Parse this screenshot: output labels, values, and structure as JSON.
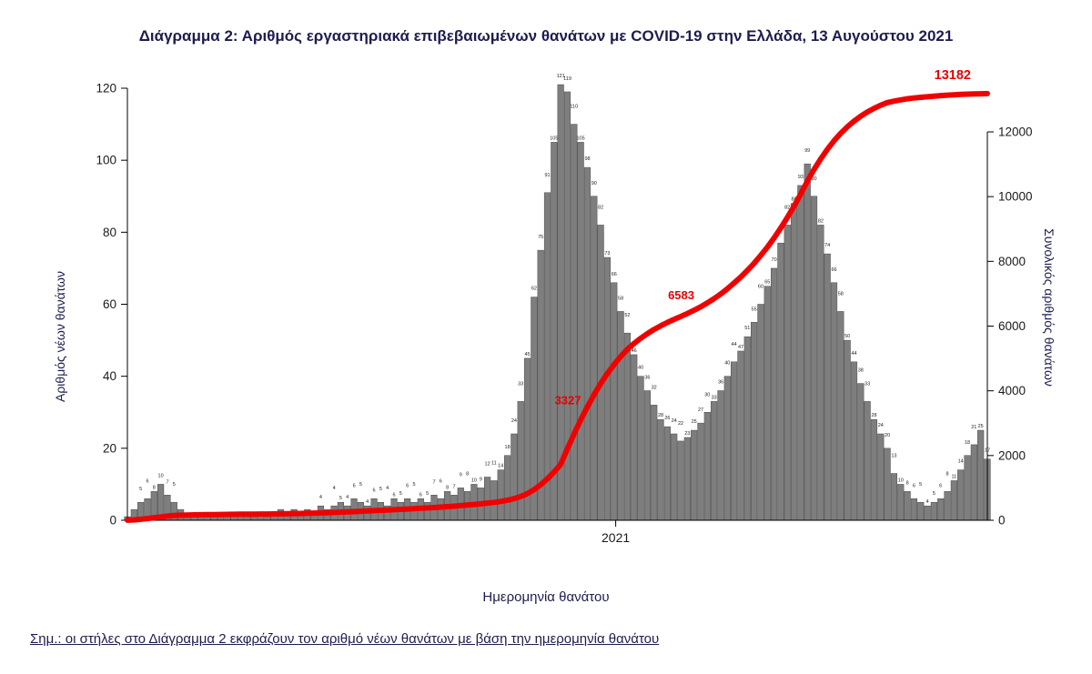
{
  "page": {
    "title": "Διάγραμμα 2: Αριθμός εργαστηριακά επιβεβαιωμένων θανάτων με COVID-19 στην Ελλάδα, 13 Αυγούστου 2021",
    "footnote": "Σημ.: οι στήλες στο Διάγραμμα 2 εκφράζουν τον αριθμό νέων θανάτων με βάση την ημερομηνία θανάτου"
  },
  "chart_data": {
    "type": "bar",
    "subtype": "daily bars + cumulative line (dual axis)",
    "title": "Διάγραμμα 2: Αριθμός εργαστηριακά επιβεβαιωμένων θανάτων με COVID-19 στην Ελλάδα, 13 Αυγούστου 2021",
    "xlabel": "Ημερομηνία θανάτου",
    "ylabel_left": "Αριθμός νέων θανάτων",
    "ylabel_right": "Συνολικός αριθμός θανάτων",
    "x_unit": "days since start of series (axis unlabeled except year tick)",
    "x_step_days": 4,
    "x_ticks": [
      {
        "day": 293,
        "label": "2021"
      }
    ],
    "y_left": {
      "min": 0,
      "max": 120,
      "step": 20
    },
    "y_right": {
      "min": 0,
      "max": 12000,
      "step": 2000
    },
    "grid": false,
    "legend": "none",
    "series": [
      {
        "name": "Αριθμός νέων θανάτων",
        "type": "bar",
        "axis": "left",
        "values": [
          1,
          3,
          5,
          6,
          8,
          10,
          7,
          5,
          3,
          2,
          1,
          2,
          1,
          1,
          2,
          1,
          1,
          2,
          1,
          1,
          2,
          1,
          2,
          3,
          2,
          3,
          2,
          3,
          2,
          4,
          3,
          4,
          5,
          4,
          6,
          5,
          4,
          6,
          5,
          4,
          6,
          5,
          6,
          5,
          6,
          5,
          7,
          6,
          8,
          7,
          9,
          8,
          10,
          9,
          12,
          11,
          14,
          18,
          24,
          33,
          45,
          62,
          75,
          91,
          105,
          121,
          119,
          110,
          105,
          98,
          90,
          82,
          73,
          66,
          58,
          52,
          46,
          40,
          36,
          32,
          28,
          26,
          24,
          22,
          23,
          25,
          27,
          30,
          33,
          36,
          40,
          44,
          47,
          51,
          55,
          60,
          65,
          70,
          77,
          82,
          88,
          93,
          99,
          90,
          82,
          74,
          66,
          58,
          50,
          44,
          38,
          33,
          28,
          24,
          20,
          13,
          10,
          8,
          6,
          5,
          4,
          5,
          6,
          8,
          11,
          14,
          18,
          21,
          25,
          17
        ]
      },
      {
        "name": "Συνολικός αριθμός θανάτων",
        "type": "line",
        "axis": "right",
        "values": [
          2,
          12,
          30,
          52,
          80,
          105,
          130,
          150,
          158,
          164,
          168,
          172,
          175,
          178,
          181,
          183,
          185,
          187,
          189,
          191,
          193,
          195,
          197,
          200,
          204,
          208,
          212,
          217,
          221,
          228,
          234,
          241,
          250,
          258,
          268,
          278,
          287,
          297,
          307,
          316,
          327,
          337,
          348,
          358,
          370,
          381,
          394,
          407,
          422,
          437,
          454,
          471,
          490,
          509,
          532,
          555,
          583,
          620,
          668,
          734,
          824,
          948,
          1098,
          1280,
          1490,
          1732,
          2210,
          2668,
          3098,
          3504,
          3880,
          4224,
          4534,
          4812,
          5060,
          5280,
          5464,
          5624,
          5768,
          5896,
          6008,
          6112,
          6208,
          6296,
          6388,
          6488,
          6596,
          6716,
          6848,
          6992,
          7152,
          7328,
          7516,
          7720,
          7940,
          8180,
          8440,
          8720,
          9028,
          9356,
          9708,
          10080,
          10476,
          10836,
          11164,
          11460,
          11724,
          11956,
          12156,
          12332,
          12484,
          12616,
          12728,
          12824,
          12904,
          12950,
          12990,
          13022,
          13048,
          13068,
          13085,
          13102,
          13120,
          13135,
          13148,
          13158,
          13166,
          13172,
          13178,
          13182
        ]
      }
    ],
    "annotations": [
      {
        "value": 3327,
        "label": "3327"
      },
      {
        "value": 6583,
        "label": "6583"
      },
      {
        "value": 13182,
        "label": "13182"
      }
    ],
    "colors": {
      "bar": "#7e7e7e",
      "bar_outline": "#4a4a4a",
      "bar_label": "#222222",
      "line": "#f10000",
      "annotation": "#e80000",
      "axis": "#000000",
      "heading": "#1d1d4f"
    }
  }
}
